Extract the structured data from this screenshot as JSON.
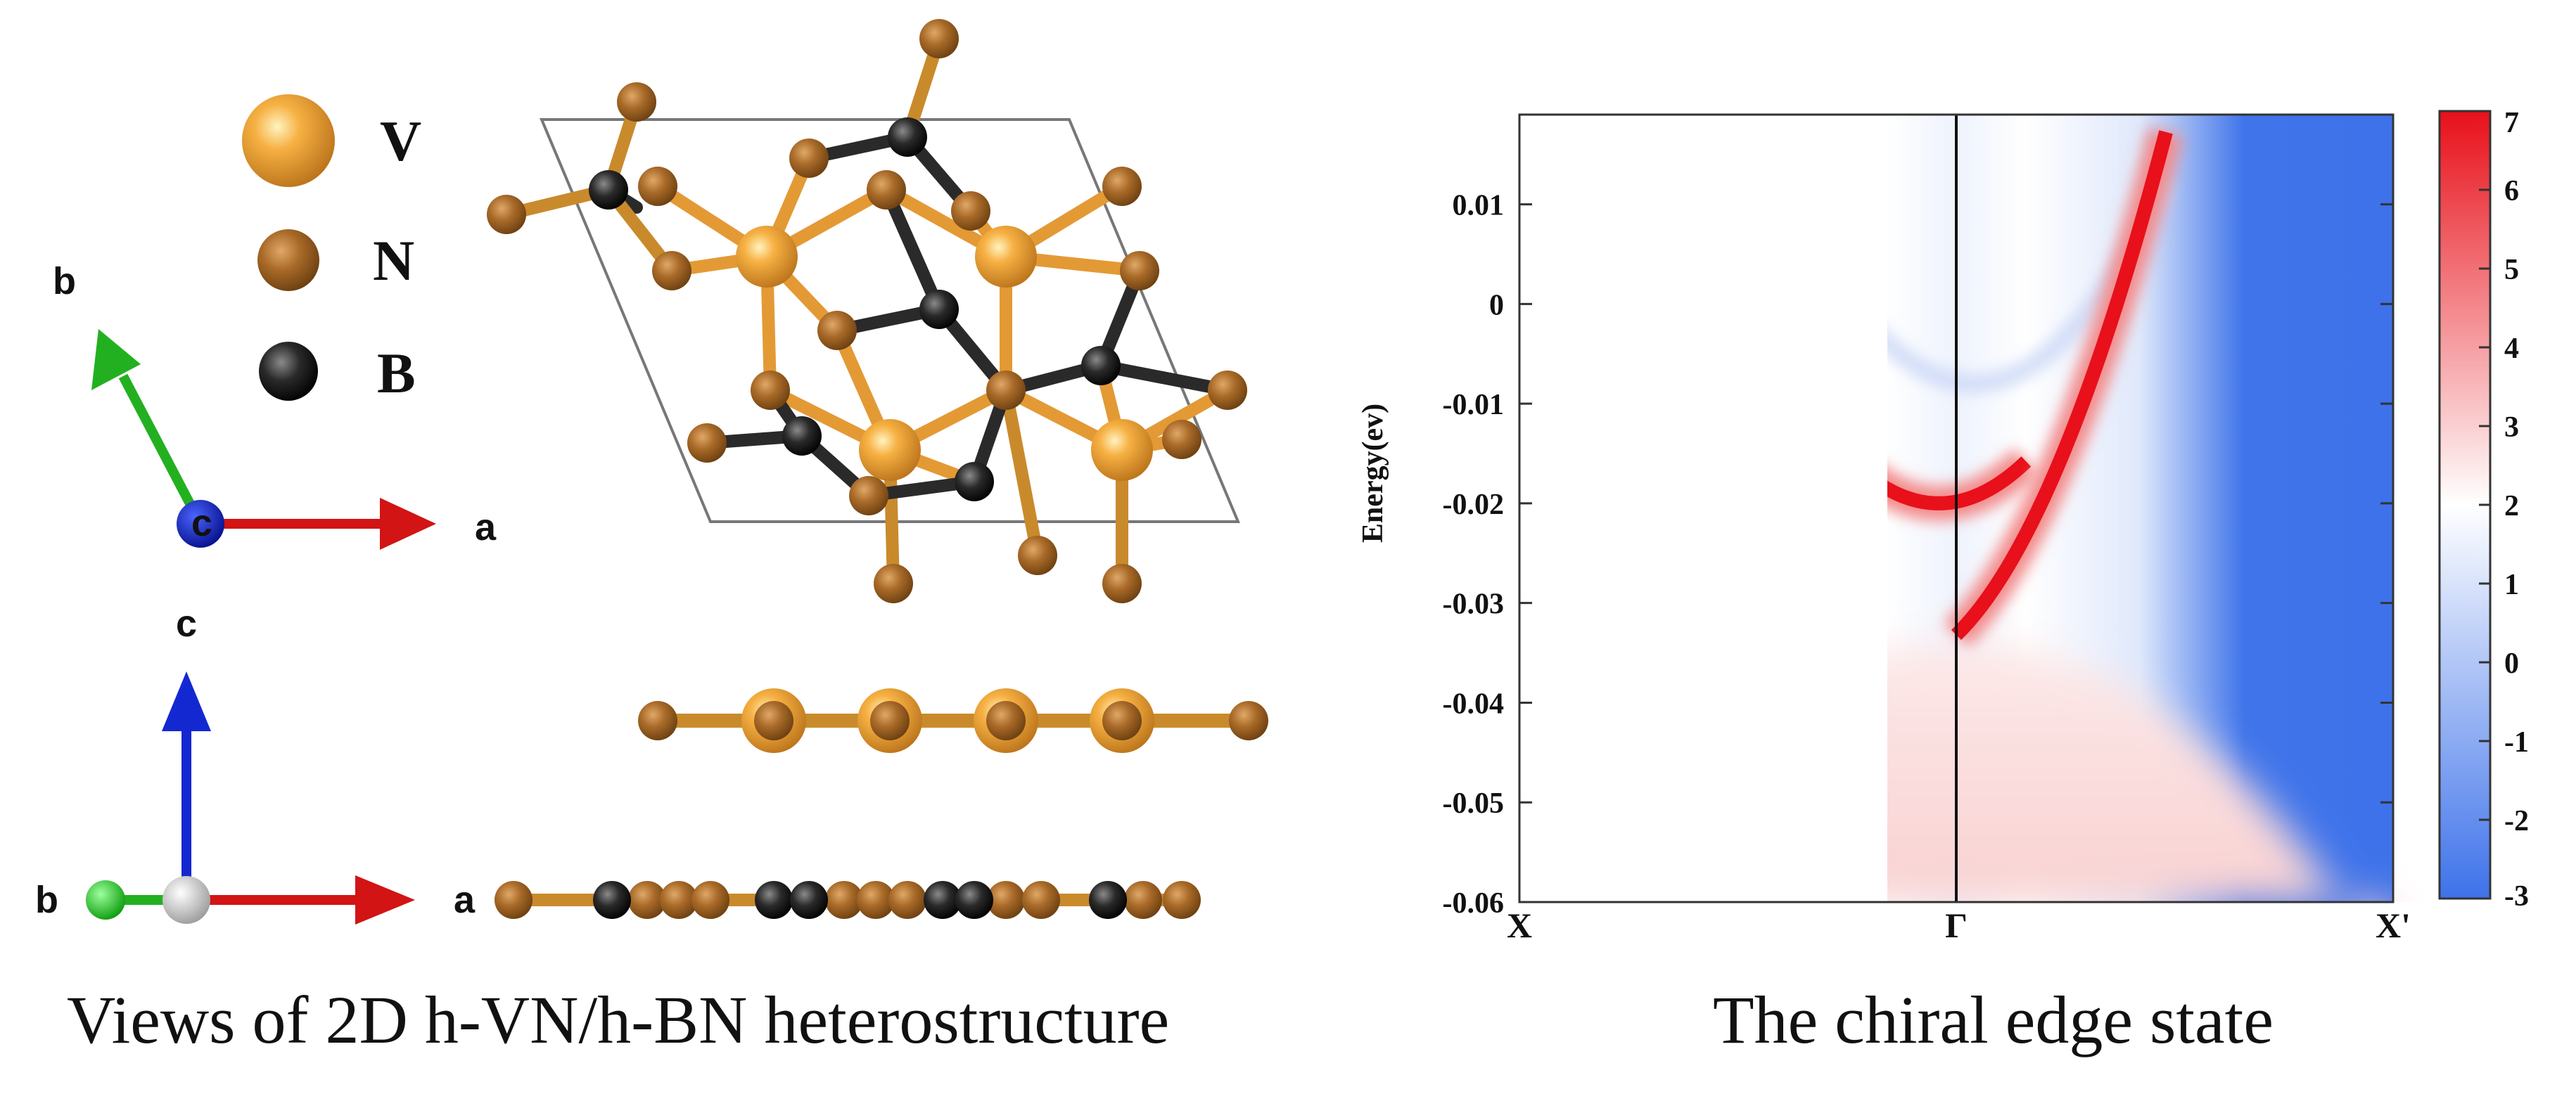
{
  "left_panel": {
    "legend": [
      {
        "symbol": "V",
        "label": "V",
        "color": "#f0a030",
        "kind": "vanadium"
      },
      {
        "symbol": "N",
        "label": "N",
        "color": "#a86a28",
        "kind": "nitrogen"
      },
      {
        "symbol": "B",
        "label": "B",
        "color": "#262626",
        "kind": "boron"
      }
    ],
    "axes_top": {
      "b": "b",
      "a": "a",
      "c": "c"
    },
    "axes_bottom": {
      "c": "c",
      "b": "b",
      "a": "a"
    },
    "caption": "Views of 2D h-VN/h-BN heterostructure"
  },
  "right_panel": {
    "caption": "The  chiral edge state",
    "colors": {
      "low": "#3e72ea",
      "mid": "#ffffff",
      "high": "#e8101a",
      "line": "#111111"
    }
  },
  "chart_data": {
    "type": "heatmap",
    "title": "",
    "xlabel": "",
    "ylabel": "Energy(ev)",
    "x_ticks": [
      "X",
      "Γ",
      "X'"
    ],
    "y_ticks": [
      "0.01",
      "0",
      "-0.01",
      "-0.02",
      "-0.03",
      "-0.04",
      "-0.05",
      "-0.06"
    ],
    "y_tick_values": [
      0.01,
      0,
      -0.01,
      -0.02,
      -0.03,
      -0.04,
      -0.05,
      -0.06
    ],
    "ylim": [
      -0.06,
      0.019
    ],
    "colorbar": {
      "min": -3,
      "max": 7,
      "ticks": [
        "7",
        "6",
        "5",
        "4",
        "3",
        "2",
        "1",
        "0",
        "-1",
        "-2",
        "-3"
      ]
    },
    "features": [
      {
        "name": "chiral edge state (left branch)",
        "description": "parabola",
        "vertex_energy": -0.02
      },
      {
        "name": "chiral edge state (right branch)",
        "crosses_gamma_energy": -0.034
      },
      {
        "name": "bulk valence continuum",
        "top_energy": -0.034
      }
    ]
  }
}
